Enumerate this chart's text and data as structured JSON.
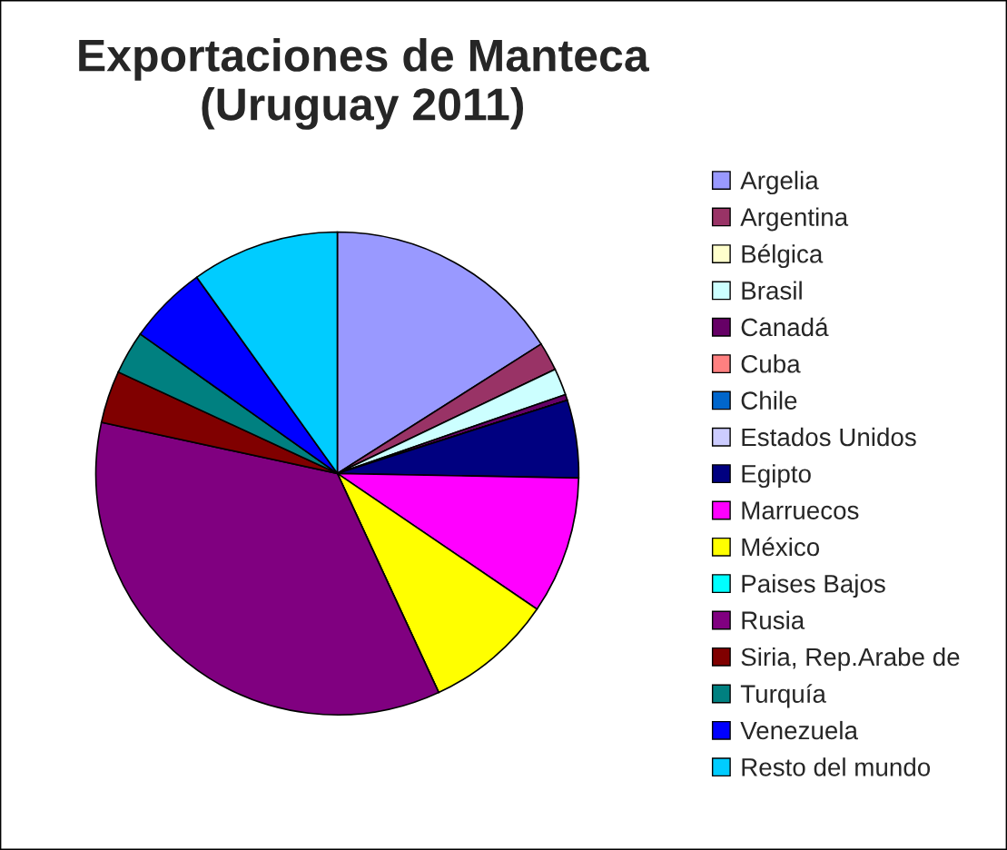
{
  "chart_data": {
    "type": "pie",
    "title": "Exportaciones de Manteca\n(Uruguay 2011)",
    "categories": [
      "Argelia",
      "Argentina",
      "Bélgica",
      "Brasil",
      "Canadá",
      "Cuba",
      "Chile",
      "Estados Unidos",
      "Egipto",
      "Marruecos",
      "México",
      "Paises Bajos",
      "Rusia",
      "Siria, Rep.Arabe de",
      "Turquía",
      "Venezuela",
      "Resto del mundo"
    ],
    "values": [
      16.0,
      1.9,
      0,
      1.8,
      0.4,
      0,
      0,
      0,
      5.2,
      9.2,
      8.6,
      0,
      35.3,
      3.5,
      2.9,
      5.3,
      9.9
    ],
    "colors": [
      "#9999ff",
      "#993366",
      "#ffffcc",
      "#ccffff",
      "#660066",
      "#ff8080",
      "#0066cc",
      "#ccccff",
      "#000080",
      "#ff00ff",
      "#ffff00",
      "#00ffff",
      "#800080",
      "#800000",
      "#008080",
      "#0000ff",
      "#00ccff"
    ],
    "legend": "right"
  }
}
